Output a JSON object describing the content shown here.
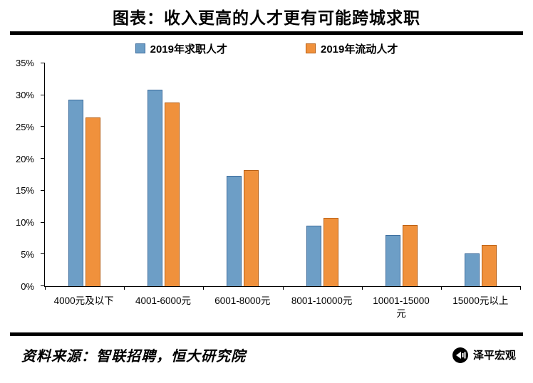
{
  "header": {
    "title": "图表：收入更高的人才更有可能跨城求职"
  },
  "chart_data": {
    "type": "bar",
    "title": "图表：收入更高的人才更有可能跨城求职",
    "categories": [
      "4000元及以下",
      "4001-6000元",
      "6001-8000元",
      "8001-10000元",
      "10001-15000\n元",
      "15000元以上"
    ],
    "series": [
      {
        "name": "2019年求职人才",
        "values": [
          29.3,
          30.9,
          17.3,
          9.5,
          8.1,
          5.2
        ],
        "fill": "#6d9ec6",
        "stroke": "#3a6a9b"
      },
      {
        "name": "2019年流动人才",
        "values": [
          26.5,
          28.9,
          18.2,
          10.7,
          9.6,
          6.5
        ],
        "fill": "#f0913c",
        "stroke": "#b85e12"
      }
    ],
    "xlabel": "",
    "ylabel": "",
    "ylim": [
      0,
      35
    ],
    "ytick_step": 5,
    "ytick_suffix": "%",
    "grid": false,
    "legend_position": "top"
  },
  "footer": {
    "source": "资料来源：智联招聘，恒大研究院",
    "watermark": "泽平宏观"
  },
  "colors": {
    "series1": "#6d9ec6",
    "series1_border": "#3a6a9b",
    "series2": "#f0913c",
    "series2_border": "#b85e12",
    "rule": "#000000"
  }
}
